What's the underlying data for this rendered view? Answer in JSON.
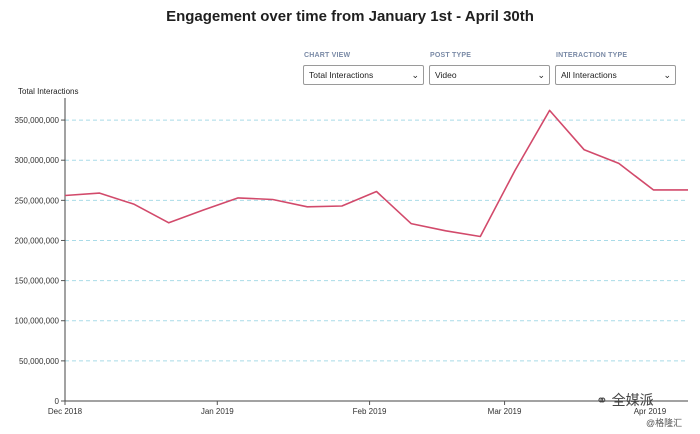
{
  "chart_data": {
    "type": "line",
    "title": "Engagement over time from January 1st - April 30th",
    "ylabel": "Total Interactions",
    "xlabel": "",
    "ylim": [
      0,
      375000000
    ],
    "x_range": [
      0,
      18
    ],
    "y_ticks": [
      0,
      50000000,
      100000000,
      150000000,
      200000000,
      250000000,
      300000000,
      350000000
    ],
    "y_tick_labels": [
      "0",
      "50,000,000",
      "100,000,000",
      "150,000,000",
      "200,000,000",
      "250,000,000",
      "300,000,000",
      "350,000,000"
    ],
    "x_ticks": [
      {
        "pos": 0,
        "label": "Dec 2018"
      },
      {
        "pos": 4.4,
        "label": "Jan 2019"
      },
      {
        "pos": 8.8,
        "label": "Feb 2019"
      },
      {
        "pos": 12.7,
        "label": "Mar 2019"
      },
      {
        "pos": 16.9,
        "label": "Apr 2019"
      }
    ],
    "series": [
      {
        "name": "Total Interactions",
        "color": "#d24a6b",
        "x": [
          0,
          1,
          2,
          3,
          4,
          5,
          6,
          7,
          8,
          9,
          10,
          11,
          12,
          13,
          14,
          15,
          16,
          17,
          18
        ],
        "values": [
          256000000,
          259000000,
          245000000,
          222000000,
          238000000,
          253000000,
          251000000,
          242000000,
          243000000,
          261000000,
          221000000,
          212000000,
          205000000,
          287000000,
          362000000,
          313000000,
          296000000,
          263000000,
          263000000
        ]
      }
    ],
    "grid": true,
    "gridline_color": "#a9dbe8"
  },
  "filters": [
    {
      "label": "CHART VIEW",
      "value": "Total Interactions"
    },
    {
      "label": "POST TYPE",
      "value": "Video"
    },
    {
      "label": "INTERACTION TYPE",
      "value": "All Interactions"
    }
  ],
  "watermark": {
    "text": "全媒派",
    "sub": "@格隆汇"
  }
}
